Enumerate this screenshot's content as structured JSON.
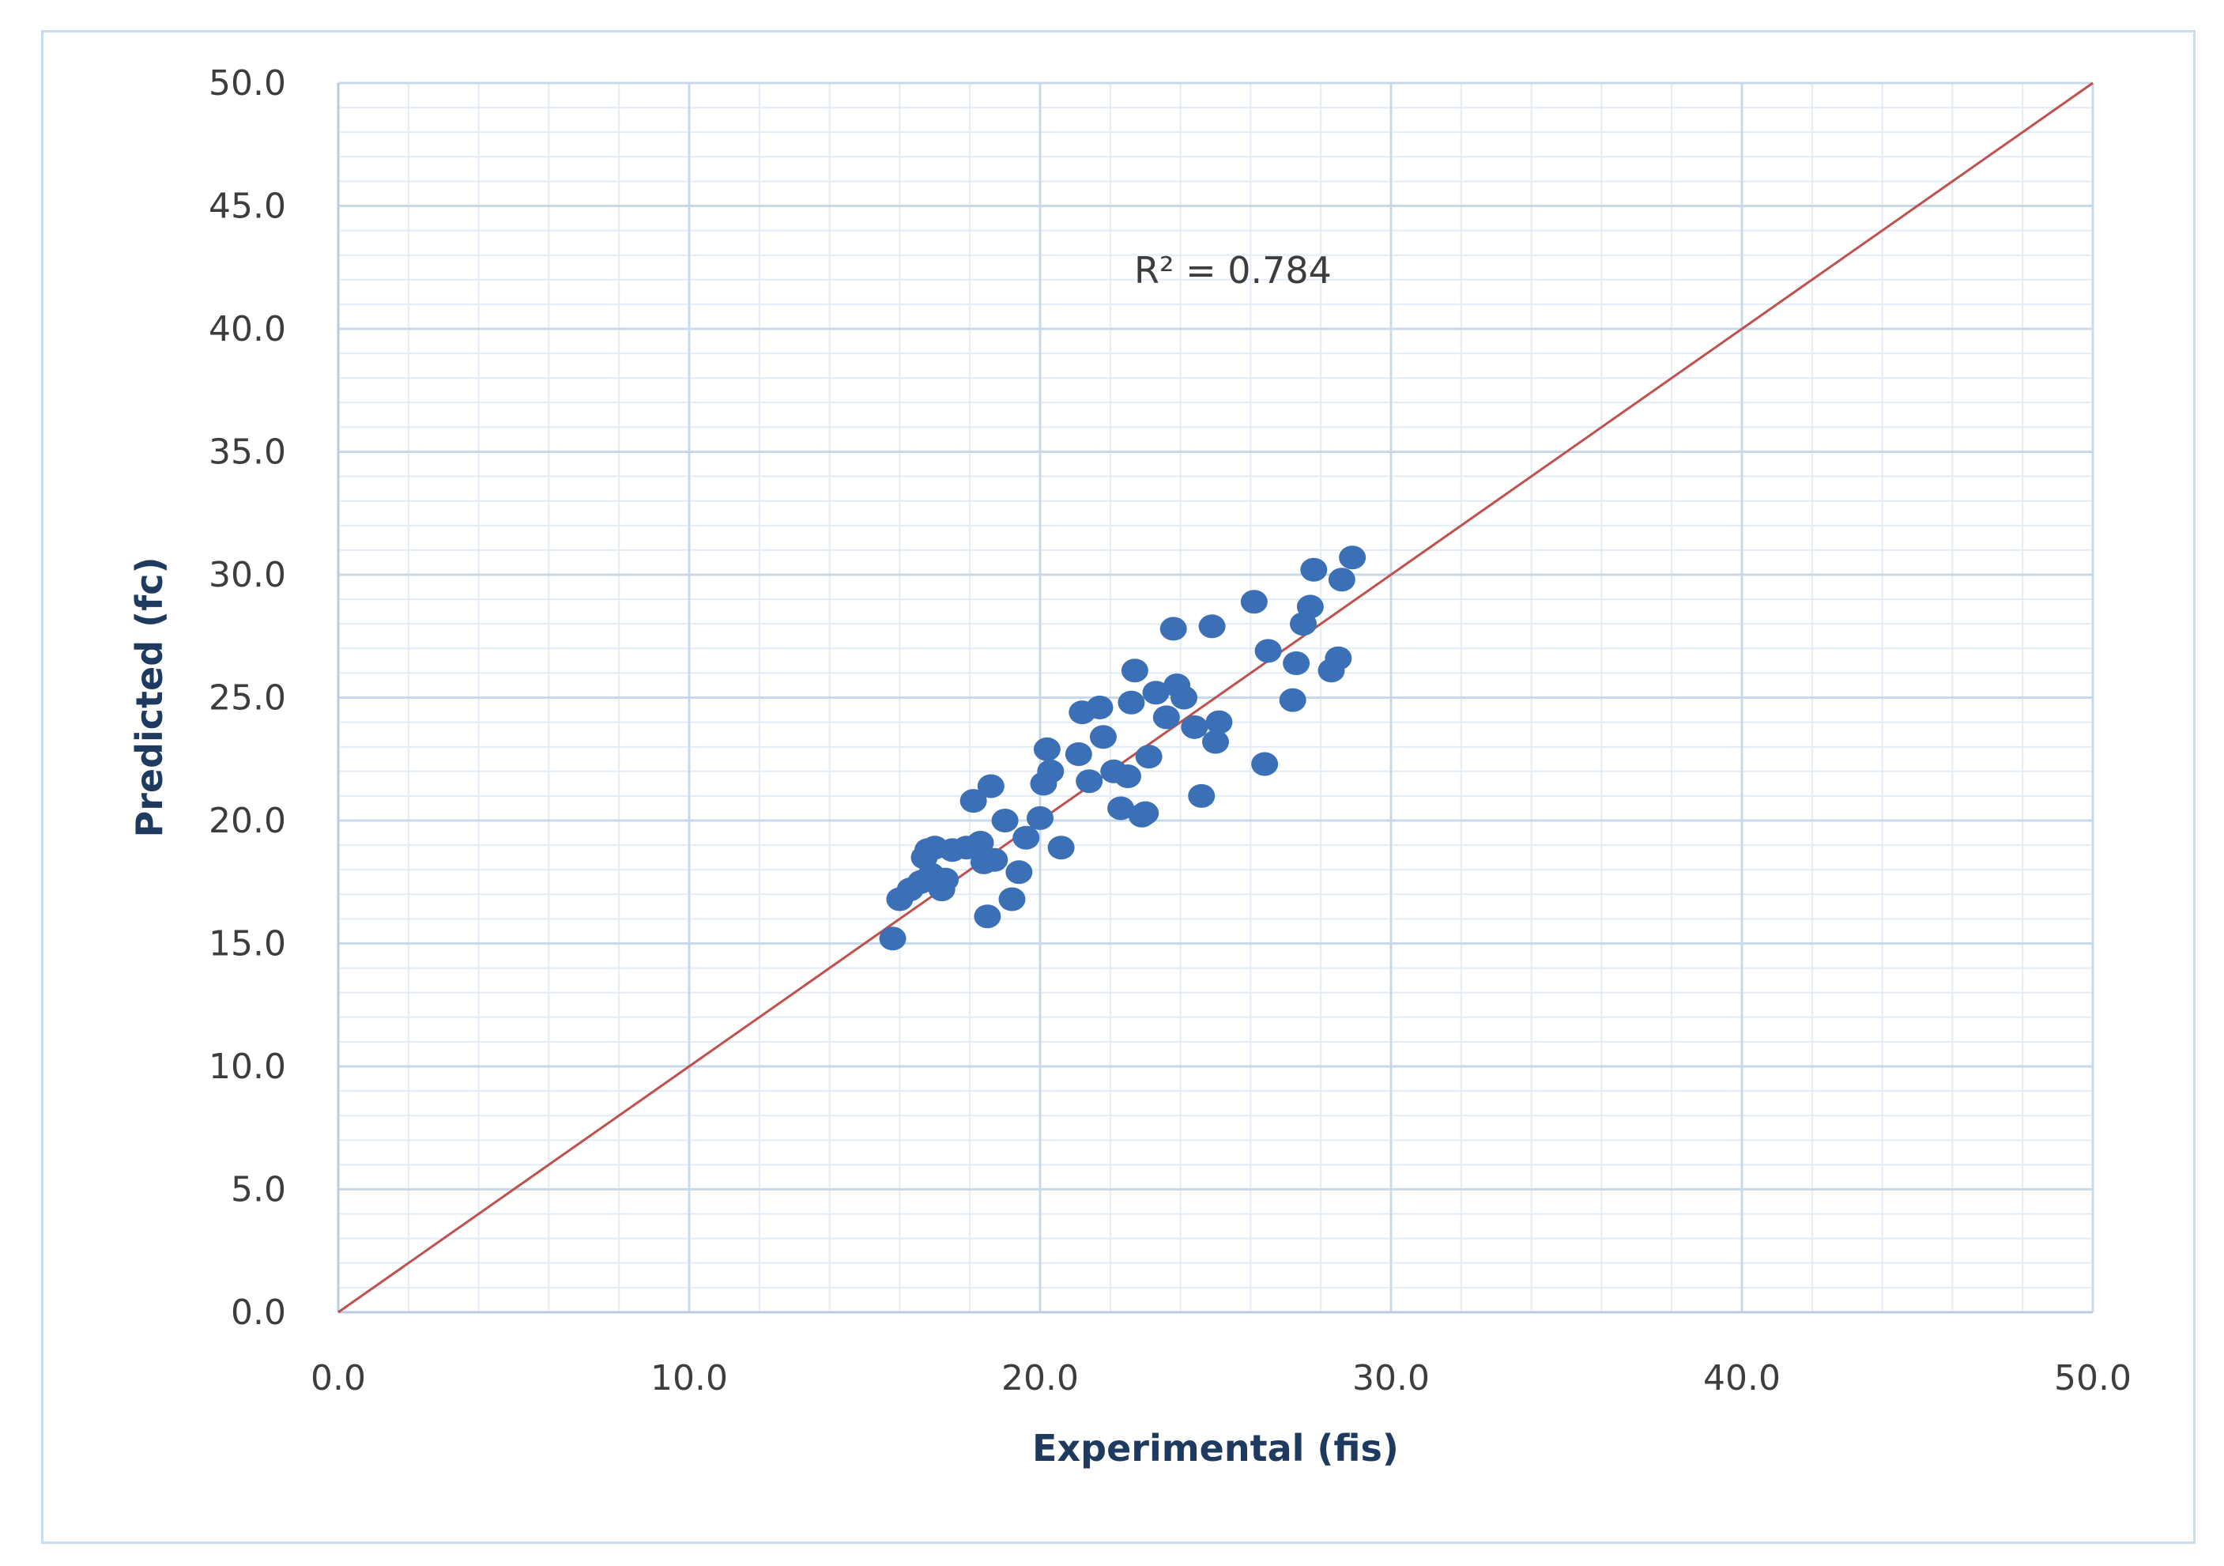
{
  "chart_data": {
    "type": "scatter",
    "xlabel": "Experimental (fis)",
    "ylabel": "Predicted (fc)",
    "xlim": [
      0,
      50
    ],
    "ylim": [
      0,
      50
    ],
    "x_ticks": [
      "0.0",
      "10.0",
      "20.0",
      "30.0",
      "40.0",
      "50.0"
    ],
    "y_ticks": [
      "0.0",
      "5.0",
      "10.0",
      "15.0",
      "20.0",
      "25.0",
      "30.0",
      "35.0",
      "40.0",
      "45.0",
      "50.0"
    ],
    "grid": true,
    "annotation": "R² = 0.784",
    "reference_line": {
      "x": [
        0,
        50
      ],
      "y": [
        0,
        50
      ]
    },
    "colors": {
      "points": "#3b6fb6",
      "line": "#c0504d",
      "grid_major": "#c9d9ec",
      "grid_minor": "#e3ecf6"
    },
    "series": [
      {
        "x": [
          15.8,
          16.0,
          16.3,
          16.6,
          16.7,
          16.8,
          16.9,
          17.0,
          17.2,
          17.5,
          17.3,
          17.9,
          18.1,
          18.3,
          18.5,
          18.4,
          18.7,
          18.6,
          19.0,
          19.2,
          19.4,
          19.6,
          20.0,
          20.1,
          20.2,
          20.3,
          20.6,
          21.1,
          21.2,
          21.4,
          21.7,
          21.8,
          22.1,
          22.3,
          22.5,
          22.6,
          22.7,
          22.9,
          23.0,
          23.1,
          23.3,
          23.6,
          23.8,
          23.9,
          24.1,
          24.4,
          24.6,
          24.9,
          25.0,
          25.1,
          26.1,
          26.4,
          26.5,
          27.2,
          27.3,
          27.5,
          27.7,
          27.8,
          28.3,
          28.5,
          28.6,
          28.9
        ],
        "y": [
          15.2,
          16.8,
          17.2,
          17.5,
          18.5,
          18.8,
          17.8,
          18.9,
          17.2,
          18.8,
          17.6,
          18.9,
          20.8,
          19.1,
          16.1,
          18.3,
          18.4,
          21.4,
          20.0,
          16.8,
          17.9,
          19.3,
          20.1,
          21.5,
          22.9,
          22.0,
          18.9,
          22.7,
          24.4,
          21.6,
          24.6,
          23.4,
          22.0,
          20.5,
          21.8,
          24.8,
          26.1,
          20.2,
          20.3,
          22.6,
          25.2,
          24.2,
          27.8,
          25.5,
          25.0,
          23.8,
          21.0,
          27.9,
          23.2,
          24.0,
          28.9,
          22.3,
          26.9,
          24.9,
          26.4,
          28.0,
          28.7,
          30.2,
          26.1,
          26.6,
          29.8,
          30.7
        ]
      }
    ]
  }
}
